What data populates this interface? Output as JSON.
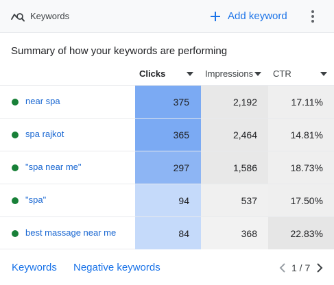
{
  "header": {
    "title": "Keywords",
    "add_label": "Add keyword",
    "icons": {
      "card": "keyword-search-icon",
      "add": "plus-icon",
      "menu": "more-vert-icon"
    }
  },
  "summary": "Summary of how your keywords are performing",
  "columns": [
    {
      "label": "Clicks",
      "sorted": true
    },
    {
      "label": "Impressions",
      "sorted": false
    },
    {
      "label": "CTR",
      "sorted": false
    }
  ],
  "colors": {
    "accent": "#1a73e8",
    "status_enabled": "#188038",
    "clicks_heat_high": "#7baaf3",
    "clicks_heat_low": "#c5dafa"
  },
  "rows": [
    {
      "keyword": "near spa",
      "status": "enabled",
      "clicks": "375",
      "impressions": "2,192",
      "ctr": "17.11%"
    },
    {
      "keyword": "spa rajkot",
      "status": "enabled",
      "clicks": "365",
      "impressions": "2,464",
      "ctr": "14.81%"
    },
    {
      "keyword": "\"spa near me\"",
      "status": "enabled",
      "clicks": "297",
      "impressions": "1,586",
      "ctr": "18.73%"
    },
    {
      "keyword": "\"spa\"",
      "status": "enabled",
      "clicks": "94",
      "impressions": "537",
      "ctr": "17.50%"
    },
    {
      "keyword": "best massage near me",
      "status": "enabled",
      "clicks": "84",
      "impressions": "368",
      "ctr": "22.83%"
    }
  ],
  "footer": {
    "keywords_link": "Keywords",
    "negative_link": "Negative keywords",
    "pager": "1 / 7"
  }
}
